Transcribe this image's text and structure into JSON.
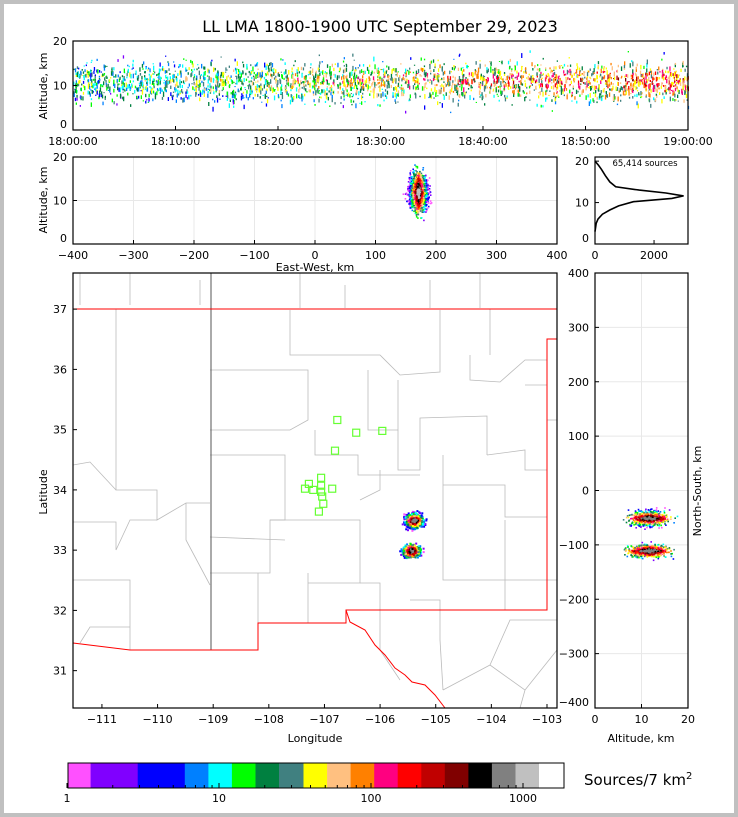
{
  "title": "LL LMA 1800-1900 UTC September 29, 2023",
  "source_count_label": "65,414 sources",
  "colorbar": {
    "label": "Sources/7 km",
    "label_sup": "2",
    "colors": [
      "#ff50ff",
      "#8000ff",
      "#0000ff",
      "#0080ff",
      "#00ffff",
      "#00ff00",
      "#008040",
      "#408080",
      "#ffff00",
      "#ffc080",
      "#ff8000",
      "#ff0080",
      "#ff0000",
      "#c00000",
      "#800000",
      "#000000",
      "#808080",
      "#c0c0c0",
      "#ffffff"
    ],
    "ticks": [
      "1",
      "10",
      "100",
      "1000"
    ]
  },
  "chart_data": [
    {
      "name": "time-height",
      "type": "scatter",
      "xlabel": "",
      "ylabel": "Altitude, km",
      "xticks": [
        "18:00:00",
        "18:10:00",
        "18:20:00",
        "18:30:00",
        "18:40:00",
        "18:50:00",
        "19:00:00"
      ],
      "xlim_minutes": [
        0,
        60
      ],
      "ylim": [
        0,
        20
      ],
      "yticks": [
        "0",
        "10",
        "20"
      ]
    },
    {
      "name": "east-west-altitude",
      "type": "heatmap",
      "xlabel": "East-West, km",
      "ylabel": "Altitude, km",
      "xlim": [
        -400,
        400
      ],
      "ylim": [
        0,
        20
      ],
      "xticks": [
        "−400",
        "−300",
        "−200",
        "−100",
        "0",
        "100",
        "200",
        "300",
        "400"
      ],
      "yticks": [
        "0",
        "10",
        "20"
      ],
      "cluster": {
        "ew_km": 170,
        "alt_range_km": [
          2,
          20
        ],
        "core_alt_km": 12
      }
    },
    {
      "name": "altitude-histogram",
      "type": "line",
      "xlim": [
        0,
        3150
      ],
      "ylim": [
        0,
        20
      ],
      "xticks": [
        "0",
        "2000"
      ],
      "yticks": [
        "0",
        "10",
        "20"
      ],
      "points": [
        [
          0,
          20
        ],
        [
          120,
          19
        ],
        [
          220,
          18
        ],
        [
          350,
          16.5
        ],
        [
          500,
          15
        ],
        [
          700,
          13.8
        ],
        [
          1500,
          13
        ],
        [
          2400,
          12.3
        ],
        [
          3000,
          11.6
        ],
        [
          2600,
          11
        ],
        [
          1300,
          10.2
        ],
        [
          800,
          9.2
        ],
        [
          500,
          8.2
        ],
        [
          250,
          7.2
        ],
        [
          100,
          6
        ],
        [
          40,
          5
        ],
        [
          0,
          3
        ]
      ]
    },
    {
      "name": "plan-view",
      "type": "heatmap",
      "xlabel": "Longitude",
      "ylabel": "Latitude",
      "xlim": [
        -111.52,
        -102.82
      ],
      "ylim": [
        30.38,
        37.6
      ],
      "xticks": [
        "−111",
        "−110",
        "−109",
        "−108",
        "−107",
        "−106",
        "−105",
        "−104",
        "−103"
      ],
      "yticks": [
        "31",
        "32",
        "33",
        "34",
        "35",
        "36",
        "37"
      ],
      "stations": [
        [
          -106.77,
          35.16
        ],
        [
          -106.43,
          34.95
        ],
        [
          -105.96,
          34.98
        ],
        [
          -106.81,
          34.65
        ],
        [
          -107.06,
          34.2
        ],
        [
          -107.28,
          34.1
        ],
        [
          -107.06,
          34.07
        ],
        [
          -107.35,
          34.02
        ],
        [
          -107.2,
          34.0
        ],
        [
          -106.86,
          34.02
        ],
        [
          -107.06,
          33.97
        ],
        [
          -107.04,
          33.89
        ],
        [
          -107.02,
          33.77
        ],
        [
          -107.1,
          33.64
        ]
      ],
      "clusters": [
        {
          "lon": -105.4,
          "lat": 33.5
        },
        {
          "lon": -105.45,
          "lat": 33.0
        }
      ]
    },
    {
      "name": "north-south-altitude",
      "type": "heatmap",
      "xlabel": "Altitude, km",
      "ylabel": "North-South, km",
      "xlim": [
        0,
        20
      ],
      "ylim": [
        -400,
        400
      ],
      "xticks": [
        "0",
        "10",
        "20"
      ],
      "yticks": [
        "−400",
        "−300",
        "−200",
        "−100",
        "0",
        "100",
        "200",
        "300",
        "400"
      ],
      "clusters_ns_km": [
        -50,
        -110
      ]
    }
  ]
}
